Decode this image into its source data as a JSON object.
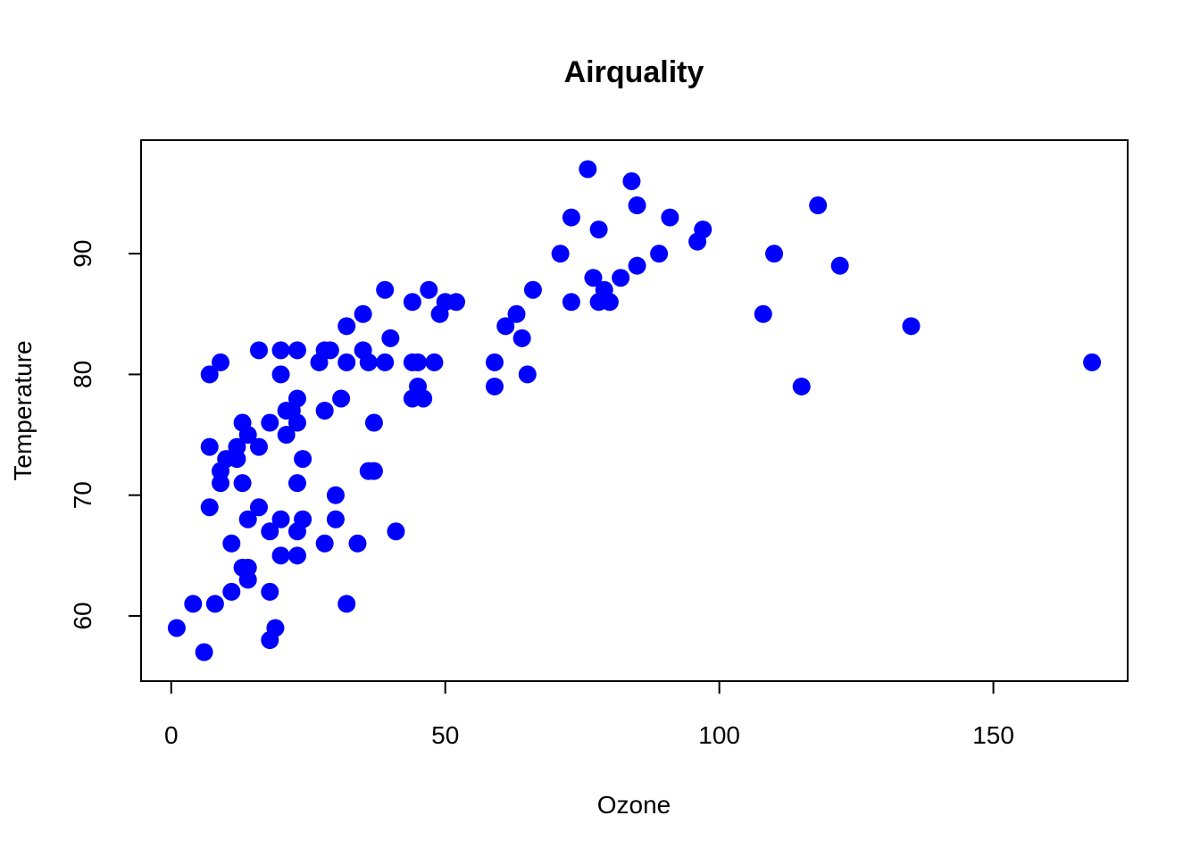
{
  "chart_data": {
    "type": "scatter",
    "title": "Airquality",
    "xlabel": "Ozone",
    "ylabel": "Temperature",
    "xlim": [
      -5.5,
      174.5
    ],
    "ylim": [
      54.6,
      99.4
    ],
    "xticks": [
      0,
      50,
      100,
      150
    ],
    "yticks": [
      60,
      70,
      80,
      90
    ],
    "grid": false,
    "point_color": "#0000ff",
    "points": [
      [
        1,
        59
      ],
      [
        4,
        61
      ],
      [
        6,
        57
      ],
      [
        7,
        80
      ],
      [
        7,
        74
      ],
      [
        7,
        69
      ],
      [
        8,
        61
      ],
      [
        9,
        81
      ],
      [
        9,
        72
      ],
      [
        9,
        71
      ],
      [
        10,
        73
      ],
      [
        11,
        66
      ],
      [
        11,
        62
      ],
      [
        12,
        74
      ],
      [
        12,
        73
      ],
      [
        13,
        76
      ],
      [
        13,
        71
      ],
      [
        13,
        64
      ],
      [
        14,
        75
      ],
      [
        14,
        68
      ],
      [
        14,
        64
      ],
      [
        14,
        63
      ],
      [
        16,
        82
      ],
      [
        16,
        74
      ],
      [
        16,
        69
      ],
      [
        18,
        76
      ],
      [
        18,
        67
      ],
      [
        18,
        62
      ],
      [
        18,
        58
      ],
      [
        19,
        59
      ],
      [
        20,
        82
      ],
      [
        20,
        80
      ],
      [
        20,
        68
      ],
      [
        20,
        65
      ],
      [
        21,
        77
      ],
      [
        21,
        75
      ],
      [
        22,
        77
      ],
      [
        23,
        82
      ],
      [
        23,
        78
      ],
      [
        23,
        76
      ],
      [
        23,
        71
      ],
      [
        23,
        67
      ],
      [
        23,
        65
      ],
      [
        24,
        73
      ],
      [
        24,
        68
      ],
      [
        27,
        81
      ],
      [
        28,
        82
      ],
      [
        28,
        77
      ],
      [
        28,
        66
      ],
      [
        29,
        82
      ],
      [
        30,
        70
      ],
      [
        30,
        68
      ],
      [
        31,
        78
      ],
      [
        32,
        84
      ],
      [
        32,
        81
      ],
      [
        32,
        61
      ],
      [
        34,
        66
      ],
      [
        35,
        85
      ],
      [
        35,
        82
      ],
      [
        36,
        81
      ],
      [
        36,
        72
      ],
      [
        37,
        76
      ],
      [
        37,
        72
      ],
      [
        39,
        87
      ],
      [
        39,
        81
      ],
      [
        40,
        83
      ],
      [
        41,
        67
      ],
      [
        44,
        86
      ],
      [
        44,
        81
      ],
      [
        44,
        78
      ],
      [
        45,
        81
      ],
      [
        45,
        79
      ],
      [
        46,
        78
      ],
      [
        47,
        87
      ],
      [
        48,
        81
      ],
      [
        49,
        85
      ],
      [
        50,
        86
      ],
      [
        52,
        86
      ],
      [
        59,
        81
      ],
      [
        59,
        79
      ],
      [
        61,
        84
      ],
      [
        63,
        85
      ],
      [
        64,
        83
      ],
      [
        65,
        80
      ],
      [
        66,
        87
      ],
      [
        71,
        90
      ],
      [
        73,
        93
      ],
      [
        73,
        86
      ],
      [
        76,
        97
      ],
      [
        77,
        88
      ],
      [
        78,
        92
      ],
      [
        78,
        86
      ],
      [
        79,
        87
      ],
      [
        80,
        86
      ],
      [
        82,
        88
      ],
      [
        84,
        96
      ],
      [
        85,
        94
      ],
      [
        85,
        89
      ],
      [
        89,
        90
      ],
      [
        91,
        93
      ],
      [
        96,
        91
      ],
      [
        97,
        92
      ],
      [
        108,
        85
      ],
      [
        110,
        90
      ],
      [
        115,
        79
      ],
      [
        118,
        94
      ],
      [
        122,
        89
      ],
      [
        135,
        84
      ],
      [
        168,
        81
      ]
    ]
  }
}
